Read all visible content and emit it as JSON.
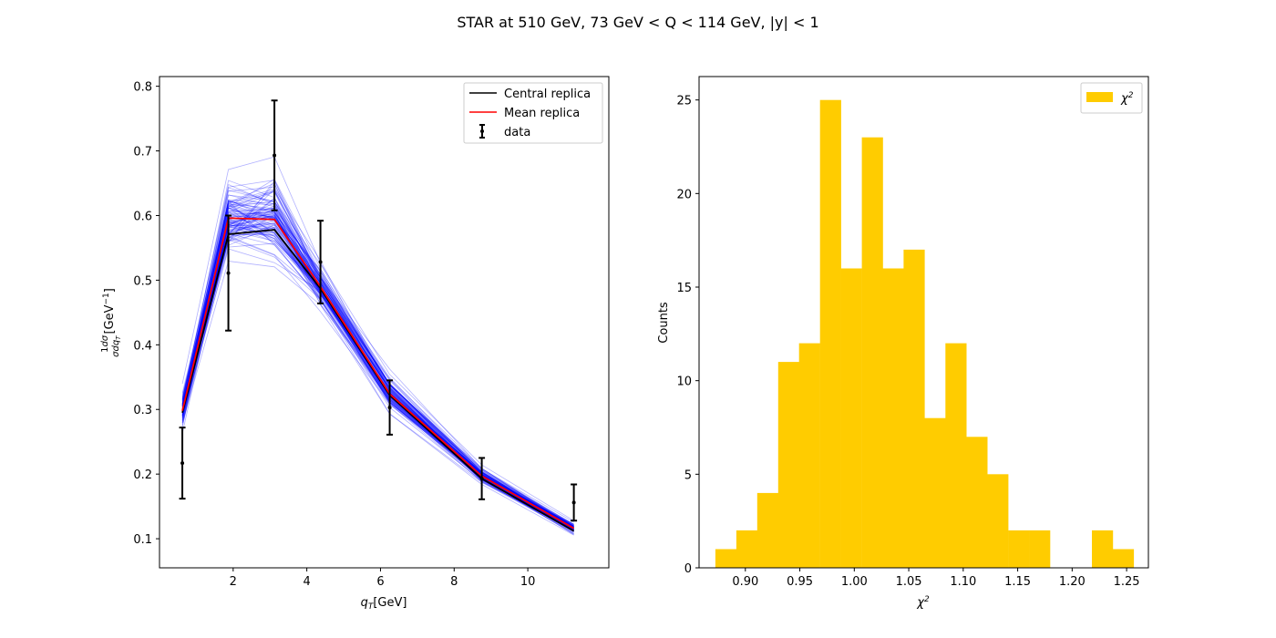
{
  "figure": {
    "title": "STAR at 510 GeV, 73 GeV < Q < 114 GeV, |y| < 1"
  },
  "chart_data": [
    {
      "type": "line",
      "xlabel": "q_T [GeV]",
      "ylabel": "(1/σ) dσ/dq_T [GeV^-1]",
      "xlim": [
        0.0,
        12.2
      ],
      "ylim": [
        0.055,
        0.815
      ],
      "xticks": [
        "2",
        "4",
        "6",
        "8",
        "10"
      ],
      "yticks": [
        "0.1",
        "0.2",
        "0.3",
        "0.4",
        "0.5",
        "0.6",
        "0.7",
        "0.8"
      ],
      "grid": false,
      "legend_position": "upper right",
      "legend": [
        "Central replica",
        "Mean replica",
        "data"
      ],
      "x": [
        0.62,
        1.87,
        3.12,
        4.37,
        6.25,
        8.75,
        11.25
      ],
      "series": [
        {
          "name": "Central replica",
          "color": "#000000",
          "values": [
            0.295,
            0.571,
            0.578,
            0.487,
            0.322,
            0.193,
            0.112
          ]
        },
        {
          "name": "Mean replica",
          "color": "#ff0000",
          "values": [
            0.298,
            0.596,
            0.594,
            0.49,
            0.324,
            0.197,
            0.116
          ]
        }
      ],
      "data": {
        "name": "data",
        "color": "#000000",
        "values": [
          0.217,
          0.511,
          0.693,
          0.528,
          0.303,
          0.193,
          0.156
        ],
        "errors": [
          0.055,
          0.089,
          0.085,
          0.064,
          0.042,
          0.032,
          0.028
        ]
      },
      "replicas": {
        "count": 100,
        "color": "#0000ff"
      }
    },
    {
      "type": "bar",
      "xlabel": "χ²",
      "ylabel": "Counts",
      "xlim": [
        0.8575,
        1.27
      ],
      "ylim": [
        0,
        26.25
      ],
      "xticks": [
        "0.90",
        "0.95",
        "1.00",
        "1.05",
        "1.10",
        "1.15",
        "1.20",
        "1.25"
      ],
      "yticks": [
        "0",
        "5",
        "10",
        "15",
        "20",
        "25"
      ],
      "legend": [
        "χ²"
      ],
      "legend_position": "upper right",
      "color": "#ffcc00",
      "bin_start": 0.8725,
      "bin_width": 0.0192,
      "values": [
        1,
        2,
        4,
        11,
        12,
        25,
        16,
        23,
        16,
        17,
        8,
        12,
        7,
        5,
        2,
        2,
        0,
        0,
        2,
        1
      ]
    }
  ]
}
